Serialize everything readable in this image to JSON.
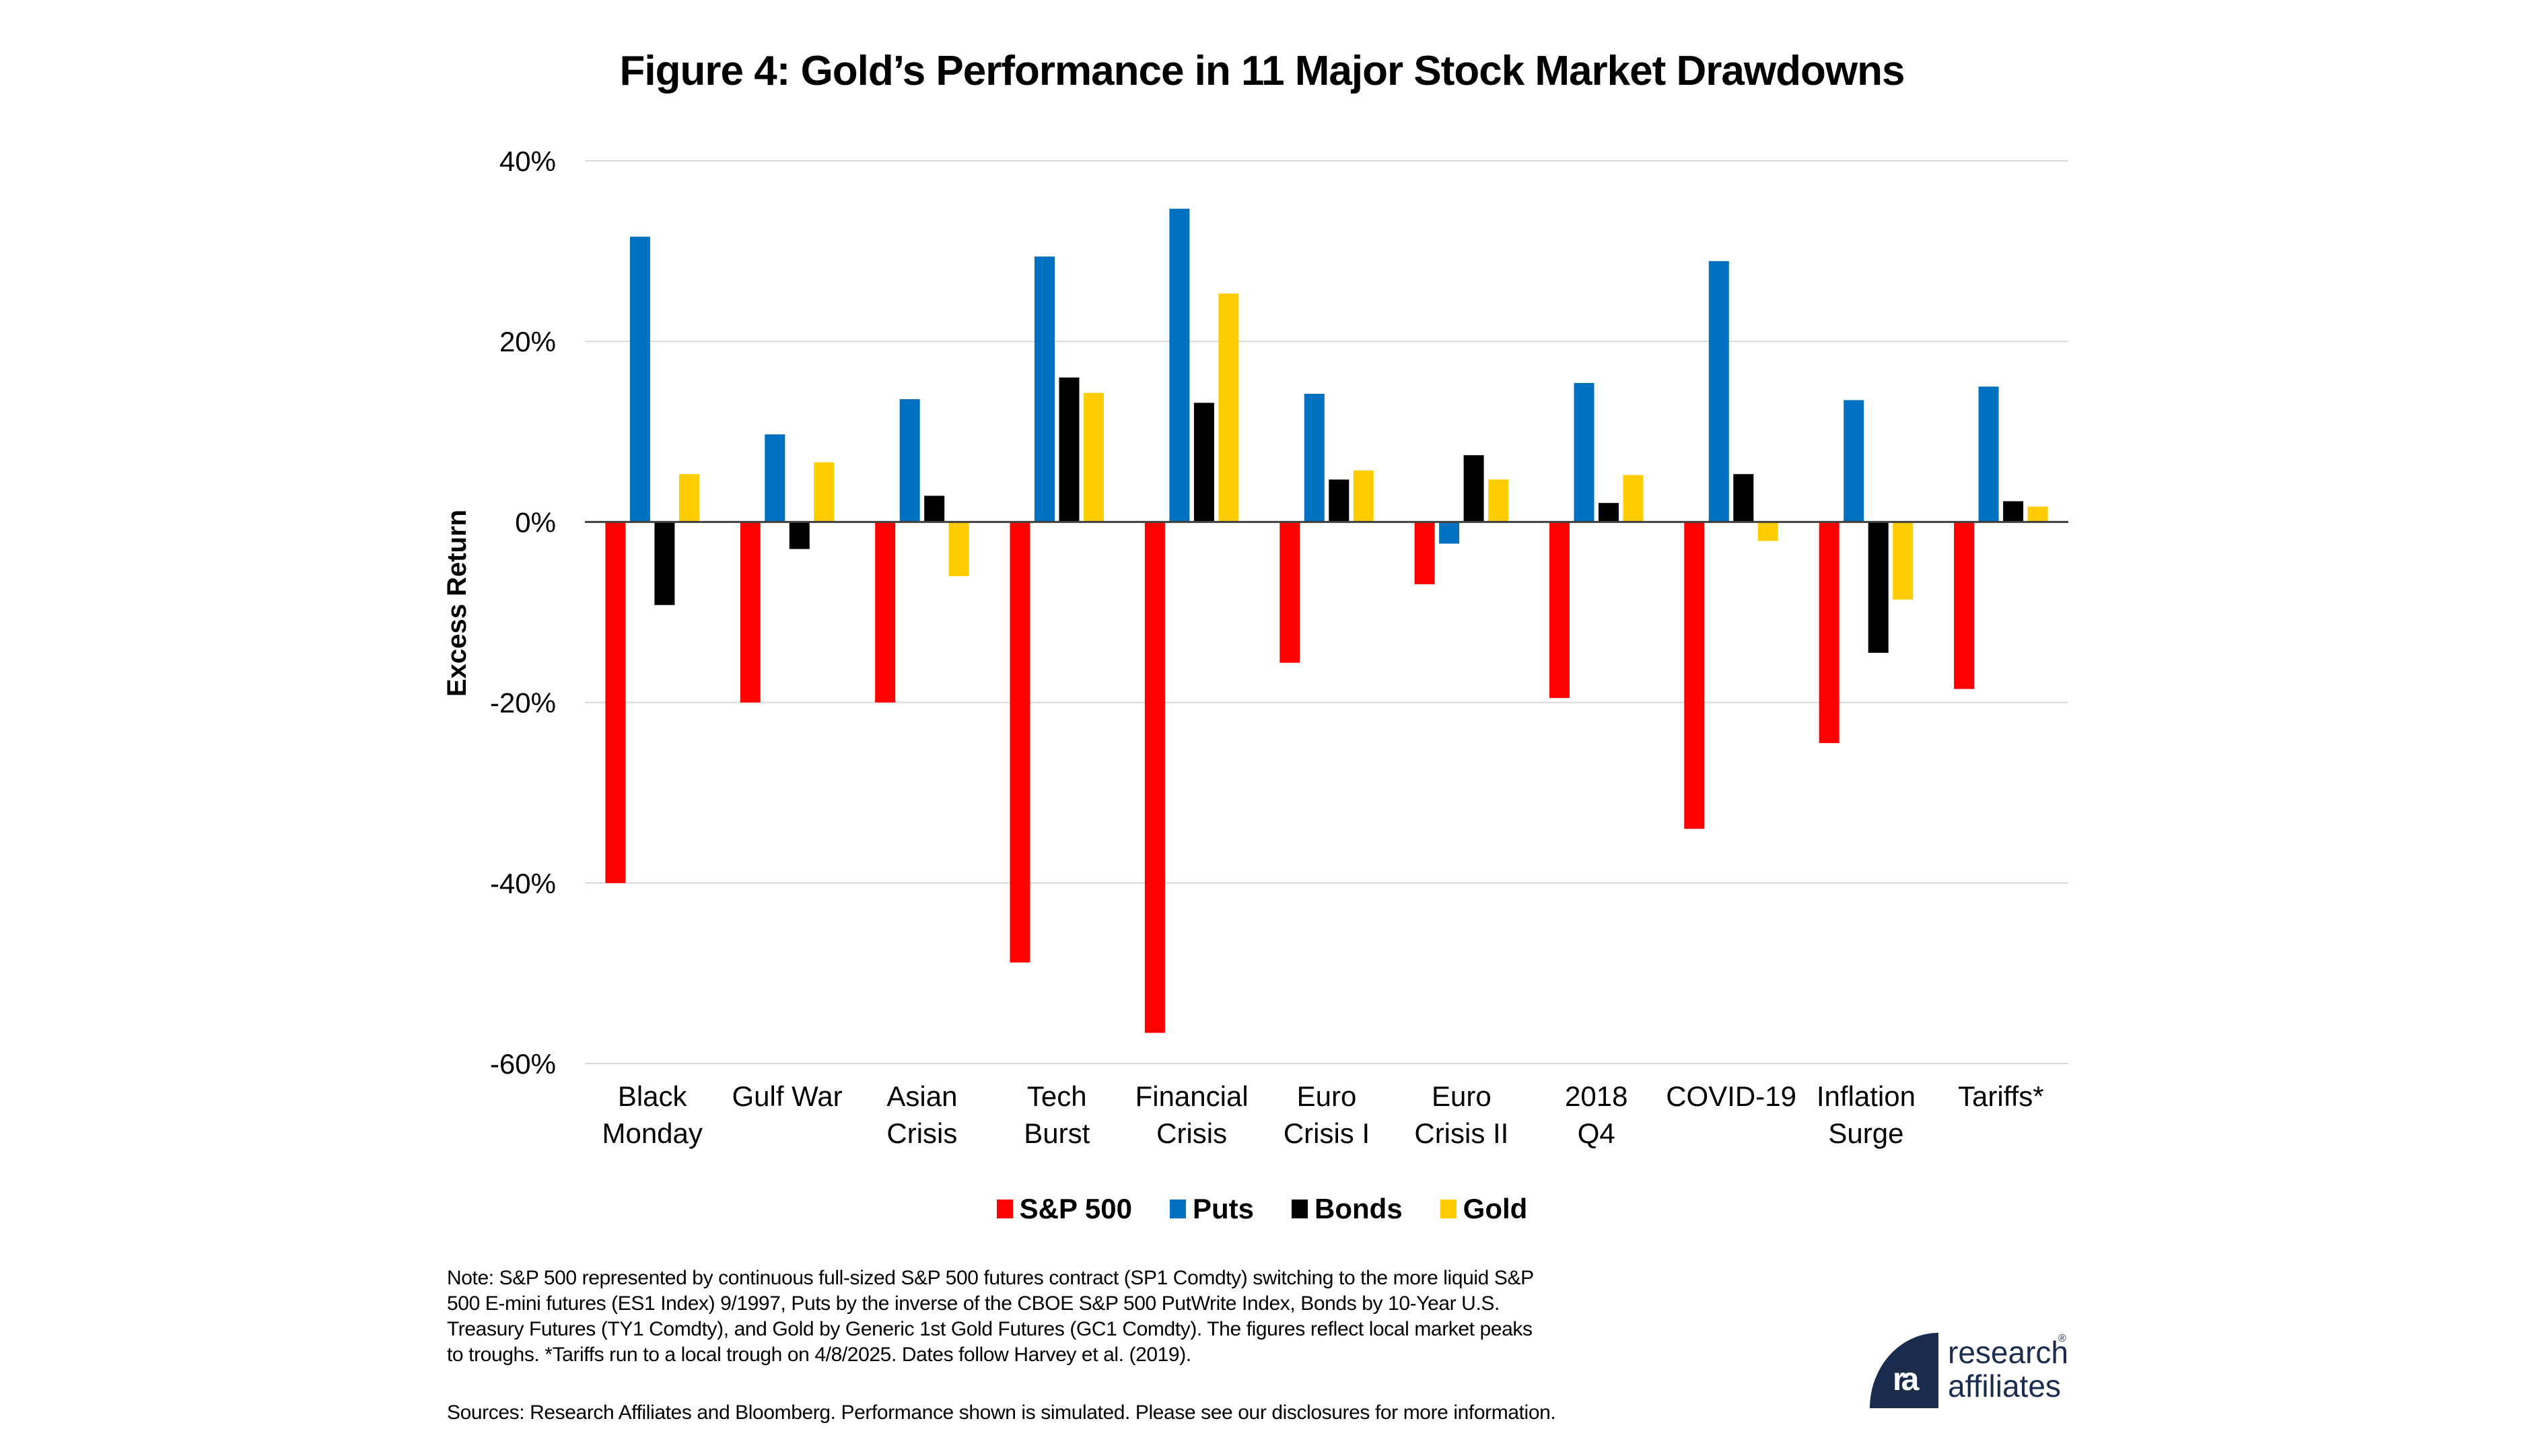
{
  "chart_data": {
    "type": "bar",
    "title": "Figure 4: Gold’s Performance in 11 Major Stock Market Drawdowns",
    "xlabel": "",
    "ylabel": "Excess Return",
    "ylim": [
      -60,
      40
    ],
    "yticks": [
      40,
      20,
      0,
      -20,
      -40,
      -60
    ],
    "ytick_labels": [
      "40%",
      "20%",
      "0%",
      "-20%",
      "-40%",
      "-60%"
    ],
    "grid": true,
    "legend_position": "bottom-center",
    "unit": "%",
    "categories": [
      [
        "Black",
        "Monday"
      ],
      [
        "Gulf War"
      ],
      [
        "Asian",
        "Crisis"
      ],
      [
        "Tech",
        "Burst"
      ],
      [
        "Financial",
        "Crisis"
      ],
      [
        "Euro",
        "Crisis I"
      ],
      [
        "Euro",
        "Crisis II"
      ],
      [
        "2018",
        "Q4"
      ],
      [
        "COVID-19"
      ],
      [
        "Inflation",
        "Surge"
      ],
      [
        "Tariffs*"
      ]
    ],
    "series": [
      {
        "name": "S&P 500",
        "color": "#FF0000",
        "values": [
          -40.0,
          -20.0,
          -20.0,
          -48.8,
          -56.6,
          -15.6,
          -6.9,
          -19.5,
          -34.0,
          -24.5,
          -18.5
        ]
      },
      {
        "name": "Puts",
        "color": "#0070C0",
        "values": [
          31.6,
          9.7,
          13.6,
          29.4,
          34.7,
          14.2,
          -2.4,
          15.4,
          28.9,
          13.5,
          15.0
        ]
      },
      {
        "name": "Bonds",
        "color": "#000000",
        "values": [
          -9.2,
          -3.0,
          2.9,
          16.0,
          13.2,
          4.7,
          7.4,
          2.1,
          5.3,
          -14.5,
          2.3
        ]
      },
      {
        "name": "Gold",
        "color": "#FFCC00",
        "values": [
          5.3,
          6.6,
          -6.0,
          14.3,
          25.3,
          5.7,
          4.7,
          5.2,
          -2.1,
          -8.6,
          1.7
        ]
      }
    ]
  },
  "note": "Note: S&P 500 represented by continuous full-sized S&P 500 futures contract (SP1 Comdty) switching to the more liquid S&P 500 E-mini futures (ES1 Index) 9/1997, Puts by the inverse of the CBOE S&P 500 PutWrite Index, Bonds by 10-Year U.S. Treasury Futures (TY1 Comdty), and Gold by Generic 1st Gold Futures (GC1 Comdty). The figures reflect local market peaks to troughs. *Tariffs run to a local trough on 4/8/2025. Dates follow Harvey et al. (2019).",
  "note_lines": [
    "Note: S&P 500 represented by continuous full-sized S&P 500 futures contract (SP1 Comdty) switching to the more liquid S&P",
    "500 E-mini futures (ES1 Index) 9/1997, Puts by the inverse of the CBOE S&P 500 PutWrite Index, Bonds by 10-Year U.S.",
    "Treasury Futures (TY1 Comdty), and Gold by Generic 1st Gold Futures (GC1 Comdty). The figures reflect local market peaks",
    "to troughs. *Tariffs run to a local trough on 4/8/2025. Dates follow Harvey et al. (2019)."
  ],
  "sources": "Sources: Research Affiliates and Bloomberg. Performance shown is simulated. Please see our disclosures for more information.",
  "logo": {
    "icon": "research-affiliates-logo-icon",
    "glyph": "ra",
    "line1": "research",
    "line2": "affiliates",
    "registered": "®",
    "color": "#1b2d4f"
  }
}
